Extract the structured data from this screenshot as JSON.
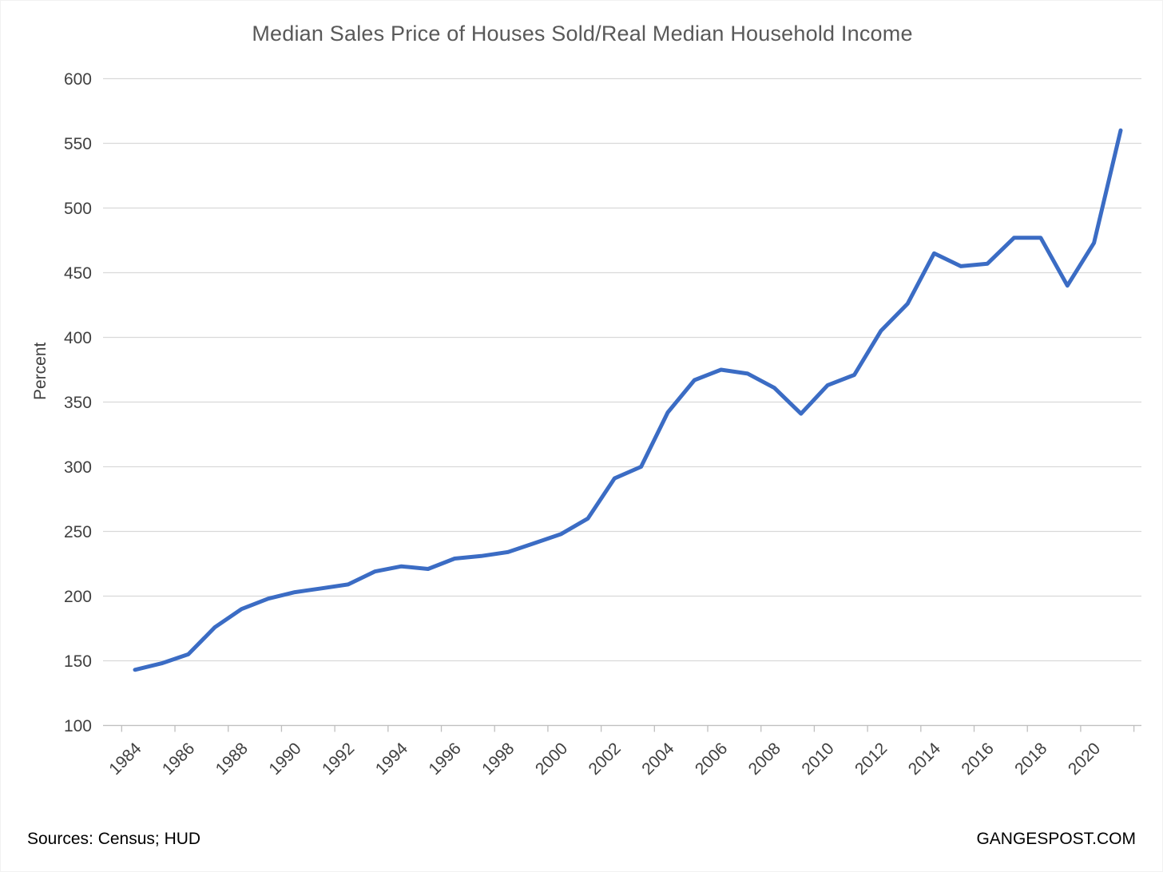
{
  "title": "Median Sales Price of Houses Sold/Real Median Household Income",
  "footer": {
    "sources": "Sources: Census; HUD",
    "site": "GANGESPOST.COM"
  },
  "colors": {
    "line": "#3B6CC4",
    "gridline": "#D9D9D9",
    "axis_line": "#BFBFBF",
    "tick_mark": "#BFBFBF",
    "title_text": "#595959",
    "tick_text": "#404040",
    "footer_text": "#000000"
  },
  "chart_data": {
    "type": "line",
    "title": "Median Sales Price of Houses Sold/Real Median Household Income",
    "xlabel": "",
    "ylabel": "Percent",
    "x": [
      1984,
      1985,
      1986,
      1987,
      1988,
      1989,
      1990,
      1991,
      1992,
      1993,
      1994,
      1995,
      1996,
      1997,
      1998,
      1999,
      2000,
      2001,
      2002,
      2003,
      2004,
      2005,
      2006,
      2007,
      2008,
      2009,
      2010,
      2011,
      2012,
      2013,
      2014,
      2015,
      2016,
      2017,
      2018,
      2019,
      2020,
      2021
    ],
    "values": [
      143,
      148,
      155,
      176,
      190,
      198,
      203,
      206,
      209,
      219,
      223,
      221,
      229,
      231,
      234,
      241,
      248,
      260,
      291,
      300,
      342,
      367,
      375,
      372,
      361,
      341,
      363,
      371,
      405,
      426,
      465,
      455,
      457,
      477,
      477,
      440,
      473,
      560
    ],
    "ylim": [
      100,
      600
    ],
    "ytick_step": 50,
    "yticks": [
      100,
      150,
      200,
      250,
      300,
      350,
      400,
      450,
      500,
      550,
      600
    ],
    "xtick_labels": [
      "1984",
      "1986",
      "1988",
      "1990",
      "1992",
      "1994",
      "1996",
      "1998",
      "2000",
      "2002",
      "2004",
      "2006",
      "2008",
      "2010",
      "2012",
      "2014",
      "2016",
      "2018",
      "2020"
    ],
    "grid": "horizontal",
    "legend": "none",
    "x_labels_rotation_deg": 45
  }
}
